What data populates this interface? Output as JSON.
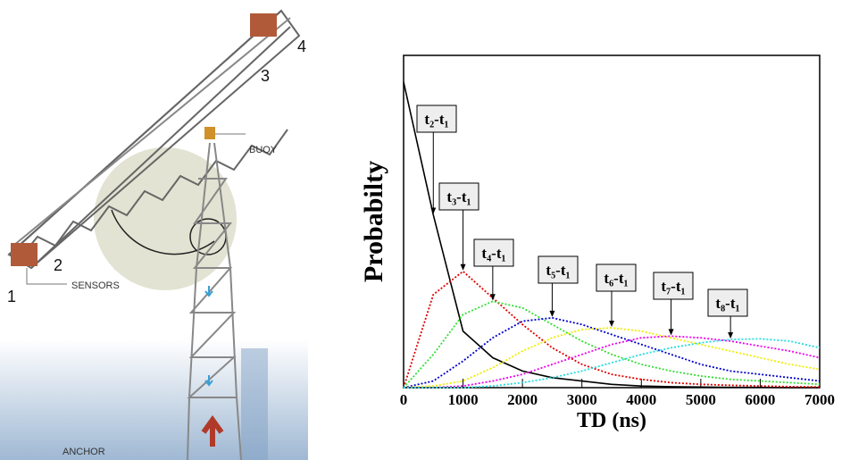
{
  "diagram": {
    "labels": [
      "BUOY",
      "SENSORS",
      "ANCHOR",
      "1",
      "2",
      "3",
      "4"
    ]
  },
  "chart_data": {
    "type": "line",
    "x_label": "TD (ns)",
    "y_label": "Probabilty",
    "x": [
      0,
      500,
      1000,
      1500,
      2000,
      2500,
      3000,
      3500,
      4000,
      4500,
      5000,
      5500,
      6000,
      6500,
      7000
    ],
    "series": [
      {
        "name": "t₂-t₁",
        "color": "#000000",
        "values": [
          92,
          52,
          17,
          9,
          5,
          3,
          2,
          1,
          0.5,
          0.3,
          0.2,
          0.1,
          0.1,
          0,
          0
        ]
      },
      {
        "name": "t₃-t₁",
        "color": "#e00000",
        "values": [
          0,
          28,
          35,
          27,
          19,
          12,
          7,
          4,
          2.5,
          1.5,
          1,
          0.7,
          0.5,
          0.3,
          0.2
        ]
      },
      {
        "name": "t₄-t₁",
        "color": "#33dd33",
        "values": [
          0,
          10,
          22,
          26,
          24,
          19,
          14,
          10,
          7,
          5,
          3.5,
          2.5,
          2,
          1.5,
          1
        ]
      },
      {
        "name": "t₅-t₁",
        "color": "#0000cc",
        "values": [
          0,
          2,
          8,
          15,
          20,
          21,
          19,
          16,
          13,
          10,
          7,
          5,
          4,
          3,
          2
        ]
      },
      {
        "name": "t₆-t₁",
        "color": "#eeee00",
        "values": [
          0,
          0.5,
          2,
          6,
          11,
          15,
          17.5,
          18,
          17,
          15,
          13,
          11,
          9,
          7,
          5.5
        ]
      },
      {
        "name": "t₇-t₁",
        "color": "#ee00ee",
        "values": [
          0,
          0,
          0.5,
          2,
          4,
          7,
          10,
          13,
          15,
          15.5,
          15,
          14,
          12.5,
          11,
          9
        ]
      },
      {
        "name": "t₈-t₁",
        "color": "#22dddd",
        "values": [
          0,
          0,
          0,
          0.5,
          1.5,
          3,
          5,
          7.5,
          10,
          12,
          13.5,
          14.5,
          14.7,
          14,
          12
        ]
      }
    ],
    "xlim": [
      0,
      7000
    ],
    "xticks": [
      0,
      1000,
      2000,
      3000,
      4000,
      5000,
      6000,
      7000
    ],
    "ylim": [
      0,
      100
    ]
  }
}
